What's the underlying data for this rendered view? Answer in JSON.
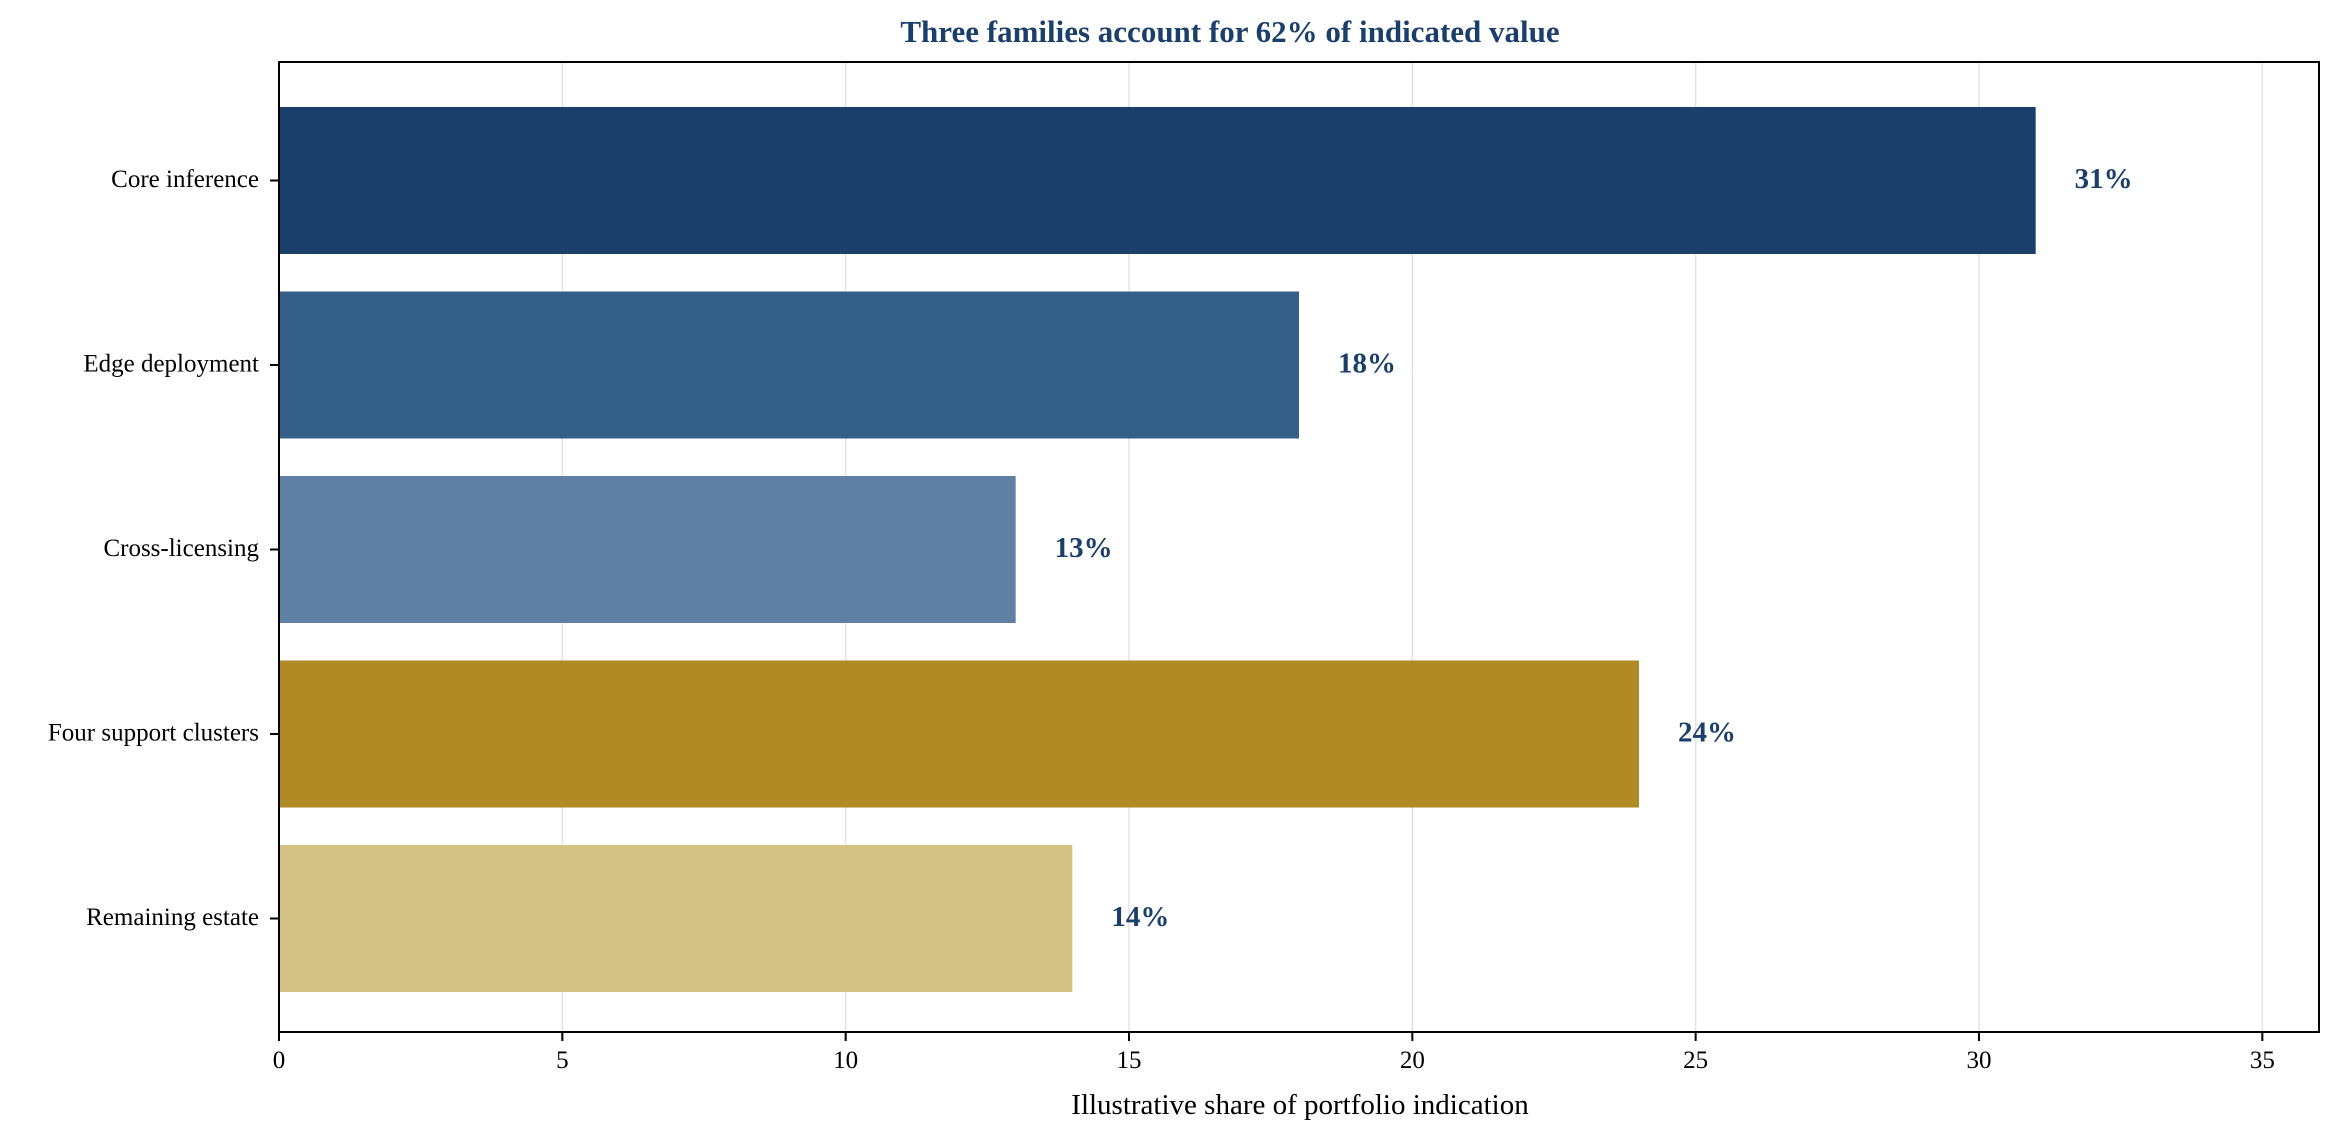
{
  "chart_data": {
    "type": "bar",
    "orientation": "horizontal",
    "title": "Three families account for 62% of indicated value",
    "xlabel": "Illustrative share of portfolio indication",
    "ylabel": "",
    "categories": [
      "Core inference",
      "Edge deployment",
      "Cross-licensing",
      "Four support clusters",
      "Remaining estate"
    ],
    "values": [
      31,
      18,
      13,
      24,
      14
    ],
    "value_labels": [
      "31%",
      "18%",
      "13%",
      "24%",
      "14%"
    ],
    "bar_colors": [
      "#1b3f6b",
      "#325e87",
      "#5f80a2",
      "#b08a22",
      "#d4c184"
    ],
    "xlim": [
      0,
      36
    ],
    "xticks": [
      0,
      5,
      10,
      15,
      20,
      25,
      30,
      35
    ],
    "grid": "vertical",
    "legend": "none",
    "title_color": "#1b3f6b",
    "label_color": "#1b3f6b"
  }
}
